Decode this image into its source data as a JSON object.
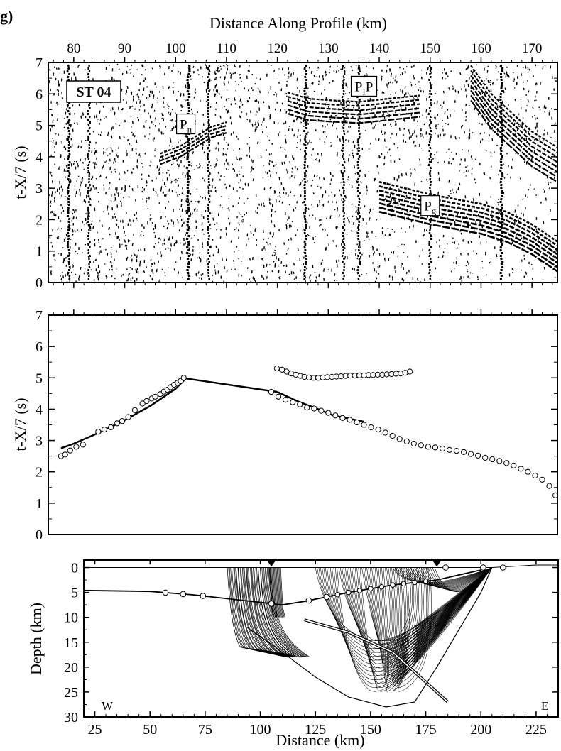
{
  "panel_label": "g)",
  "chart_data": [
    {
      "type": "seismic_record_section",
      "title": "Distance Along Profile (km)",
      "xlabel": "Distance Along Profile (km)",
      "ylabel": "t-X/7 (s)",
      "xlim": [
        75,
        175
      ],
      "ylim": [
        0,
        7
      ],
      "xticks": [
        80,
        90,
        100,
        110,
        120,
        130,
        140,
        150,
        160,
        170
      ],
      "yticks": [
        0,
        1,
        2,
        3,
        4,
        5,
        6,
        7
      ],
      "station_label": "ST 04",
      "annotations": [
        {
          "base": "P",
          "sub": "n",
          "x": 102,
          "y": 5.0
        },
        {
          "base": "P",
          "sub": "I",
          "suffix": "P",
          "x": 137,
          "y": 6.2
        },
        {
          "base": "P",
          "sub": "g",
          "x": 150,
          "y": 2.4
        }
      ],
      "phases": {
        "Pn": [
          [
            97,
            4.1
          ],
          [
            101,
            4.35
          ],
          [
            103,
            4.55
          ],
          [
            107,
            4.95
          ],
          [
            110,
            5.1
          ]
        ],
        "PIP": [
          [
            122,
            6.05
          ],
          [
            126,
            5.85
          ],
          [
            130,
            5.8
          ],
          [
            136,
            5.75
          ],
          [
            142,
            5.85
          ],
          [
            148,
            5.95
          ]
        ],
        "Pg": [
          [
            140,
            3.2
          ],
          [
            145,
            3.0
          ],
          [
            150,
            2.8
          ],
          [
            155,
            2.65
          ],
          [
            160,
            2.5
          ],
          [
            165,
            2.25
          ],
          [
            170,
            1.85
          ],
          [
            175,
            1.3
          ]
        ],
        "Pg_late": [
          [
            158,
            6.9
          ],
          [
            162,
            6.0
          ],
          [
            166,
            5.4
          ],
          [
            170,
            4.8
          ],
          [
            175,
            4.3
          ]
        ]
      }
    },
    {
      "type": "scatter",
      "xlim": [
        75,
        175
      ],
      "ylim": [
        0,
        7
      ],
      "ylabel": "t-X/7 (s)",
      "yticks": [
        0,
        1,
        2,
        3,
        4,
        5,
        6,
        7
      ],
      "observed": [
        {
          "name": "Pn",
          "x": [
            77.5,
            78.3,
            79.3,
            80.5,
            81.8,
            84.8,
            86.0,
            87.3,
            88.5,
            89.5,
            90.7,
            92.0,
            93.5,
            94.3,
            95.3,
            96.0,
            97.0,
            97.7,
            98.4,
            99.0,
            99.7,
            100.4,
            101.0,
            101.6
          ],
          "y": [
            2.5,
            2.55,
            2.68,
            2.8,
            2.87,
            3.28,
            3.35,
            3.42,
            3.55,
            3.62,
            3.75,
            3.97,
            4.18,
            4.26,
            4.34,
            4.4,
            4.48,
            4.56,
            4.62,
            4.7,
            4.78,
            4.84,
            4.9,
            5.0
          ]
        },
        {
          "name": "PIP",
          "x": [
            119.9,
            120.9,
            121.8,
            122.7,
            123.6,
            124.5,
            125.3,
            126.2,
            127.1,
            128.0,
            128.9,
            129.8,
            130.7,
            131.6,
            132.5,
            133.4,
            134.3,
            135.2,
            136.1,
            137.0,
            137.9,
            138.8,
            139.7,
            140.6,
            141.5,
            142.4,
            143.3,
            144.2,
            145.1,
            146.0
          ],
          "y": [
            5.3,
            5.26,
            5.2,
            5.14,
            5.1,
            5.06,
            5.03,
            5.01,
            5.0,
            5.0,
            5.01,
            5.02,
            5.03,
            5.04,
            5.05,
            5.06,
            5.07,
            5.07,
            5.08,
            5.08,
            5.09,
            5.09,
            5.1,
            5.1,
            5.11,
            5.12,
            5.13,
            5.14,
            5.16,
            5.2
          ]
        },
        {
          "name": "Pg",
          "x": [
            118.8,
            120.2,
            121.6,
            123.0,
            124.4,
            125.8,
            127.2,
            128.6,
            130.0,
            131.4,
            132.8,
            134.2,
            135.6,
            137.0,
            138.4,
            139.8,
            141.2,
            142.6,
            144.0,
            145.4,
            146.8,
            148.2,
            149.6,
            151.0,
            152.4,
            153.8,
            155.2,
            156.6,
            158.0,
            159.4,
            160.8,
            162.2,
            163.6,
            165.0,
            166.4,
            167.8,
            169.2,
            170.6,
            172.0,
            173.4,
            174.6
          ],
          "y": [
            4.55,
            4.4,
            4.3,
            4.22,
            4.15,
            4.05,
            4.02,
            3.95,
            3.88,
            3.8,
            3.72,
            3.66,
            3.58,
            3.5,
            3.42,
            3.35,
            3.25,
            3.15,
            3.05,
            2.97,
            2.9,
            2.85,
            2.8,
            2.78,
            2.74,
            2.7,
            2.67,
            2.63,
            2.57,
            2.52,
            2.45,
            2.4,
            2.35,
            2.28,
            2.2,
            2.1,
            2.0,
            1.88,
            1.75,
            1.55,
            1.25
          ]
        }
      ],
      "calculated": [
        {
          "name": "Pn",
          "x": [
            77.5,
            80,
            85,
            90,
            95,
            100,
            102
          ],
          "y": [
            2.75,
            2.9,
            3.25,
            3.65,
            4.1,
            4.65,
            4.98
          ]
        },
        {
          "name": "headwave",
          "x": [
            102,
            120
          ],
          "y": [
            4.98,
            4.55
          ]
        },
        {
          "name": "PIP",
          "x": [
            125,
            128,
            132,
            136,
            140,
            144,
            146
          ],
          "y": [
            5.05,
            5.0,
            5.02,
            5.06,
            5.1,
            5.15,
            5.2
          ]
        },
        {
          "name": "Pg",
          "x": [
            120,
            124,
            128,
            131,
            134,
            137
          ],
          "y": [
            4.55,
            4.25,
            4.0,
            3.8,
            3.7,
            3.6
          ]
        }
      ]
    },
    {
      "type": "ray_diagram",
      "xlabel": "Distance (km)",
      "ylabel": "Depth (km)",
      "xlim": [
        20,
        235
      ],
      "ylim": [
        30,
        -1.5
      ],
      "xticks": [
        25,
        50,
        75,
        100,
        125,
        150,
        175,
        200,
        225
      ],
      "yticks": [
        0,
        5,
        10,
        15,
        20,
        25,
        30
      ],
      "corner_labels": {
        "west": "W",
        "east": "E"
      },
      "stations_km": [
        105,
        180
      ],
      "surface": [
        [
          20,
          0
        ],
        [
          205,
          0
        ],
        [
          225,
          -0.5
        ],
        [
          235,
          -0.5
        ]
      ],
      "moho": [
        [
          20,
          4.6
        ],
        [
          50,
          4.8
        ],
        [
          70,
          5.5
        ],
        [
          100,
          7.0
        ],
        [
          110,
          7.5
        ],
        [
          120,
          6.8
        ],
        [
          140,
          5.0
        ],
        [
          160,
          3.5
        ],
        [
          180,
          2.5
        ],
        [
          200,
          0.5
        ]
      ],
      "moho_nodes_x": [
        57,
        65,
        74,
        105,
        122,
        130
      ],
      "slab": [
        [
          120,
          10.5
        ],
        [
          140,
          13
        ],
        [
          160,
          17
        ],
        [
          185,
          27
        ]
      ],
      "basin_outline": [
        [
          94,
          12
        ],
        [
          110,
          17
        ],
        [
          125,
          22
        ],
        [
          140,
          26
        ],
        [
          157,
          28
        ],
        [
          170,
          27
        ],
        [
          180,
          20
        ],
        [
          200,
          5
        ],
        [
          205,
          0
        ]
      ],
      "surface_nodes_x": [
        184,
        201,
        210
      ]
    }
  ],
  "colors": {
    "ink": "#000000",
    "paper": "#ffffff",
    "marker_fill": "#ffffff"
  }
}
